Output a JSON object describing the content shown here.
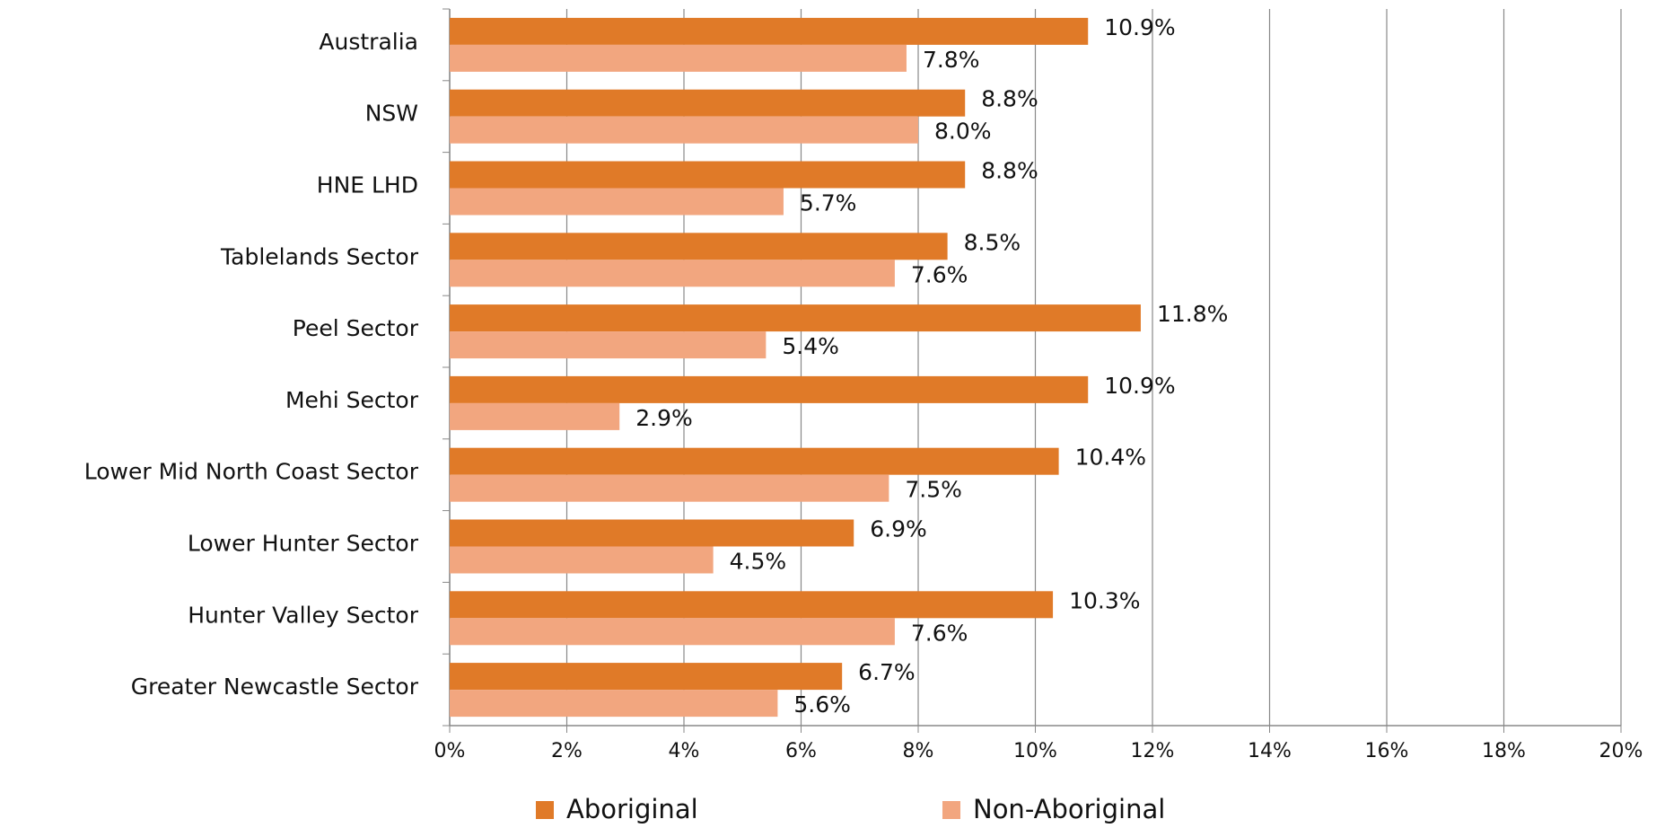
{
  "chart_data": {
    "type": "bar",
    "orientation": "horizontal",
    "categories": [
      "Australia",
      "NSW",
      "HNE LHD",
      "Tablelands Sector",
      "Peel Sector",
      "Mehi Sector",
      "Lower Mid North Coast Sector",
      "Lower Hunter Sector",
      "Hunter Valley Sector",
      "Greater Newcastle Sector"
    ],
    "series": [
      {
        "name": "Aboriginal",
        "color": "#e07a28",
        "values": [
          10.9,
          8.8,
          8.8,
          8.5,
          11.8,
          10.9,
          10.4,
          6.9,
          10.3,
          6.7
        ],
        "value_labels": [
          "10.9%",
          "8.8%",
          "8.8%",
          "8.5%",
          "11.8%",
          "10.9%",
          "10.4%",
          "6.9%",
          "10.3%",
          "6.7%"
        ]
      },
      {
        "name": "Non-Aboriginal",
        "color": "#f2a67f",
        "values": [
          7.8,
          8.0,
          5.7,
          7.6,
          5.4,
          2.9,
          7.5,
          4.5,
          7.6,
          5.6
        ],
        "value_labels": [
          "7.8%",
          "8.0%",
          "5.7%",
          "7.6%",
          "5.4%",
          "2.9%",
          "7.5%",
          "4.5%",
          "7.6%",
          "5.6%"
        ]
      }
    ],
    "xlim": [
      0,
      20
    ],
    "xticks": [
      {
        "value": 0,
        "label": "0%"
      },
      {
        "value": 2,
        "label": "2%"
      },
      {
        "value": 4,
        "label": "4%"
      },
      {
        "value": 6,
        "label": "6%"
      },
      {
        "value": 8,
        "label": "8%"
      },
      {
        "value": 10,
        "label": "10%"
      },
      {
        "value": 12,
        "label": "12%"
      },
      {
        "value": 14,
        "label": "14%"
      },
      {
        "value": 16,
        "label": "16%"
      },
      {
        "value": 18,
        "label": "18%"
      },
      {
        "value": 20,
        "label": "20%"
      }
    ],
    "grid": true,
    "legend": "bottom"
  }
}
